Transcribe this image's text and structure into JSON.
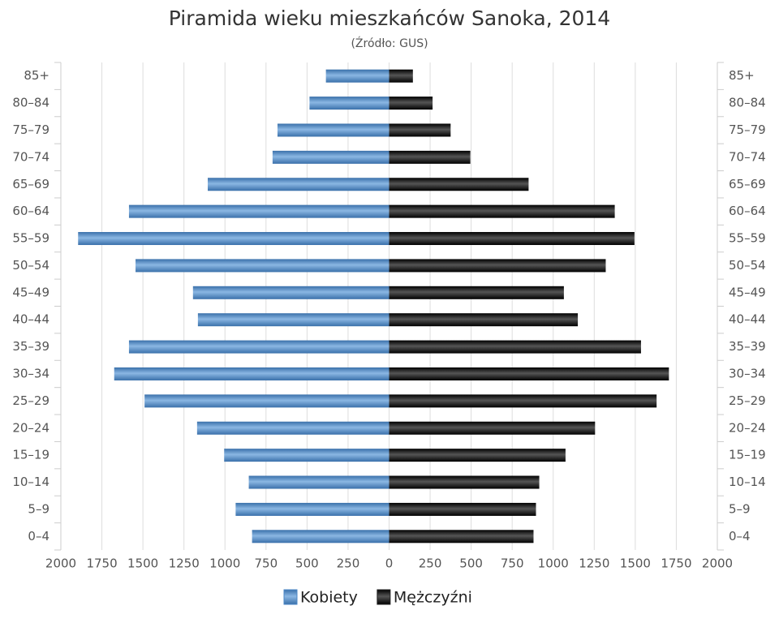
{
  "chart_data": {
    "type": "pyramid",
    "title": "Piramida wieku mieszkańców Sanoka, 2014",
    "subtitle": "(Źródło: GUS)",
    "categories": [
      "0–4",
      "5–9",
      "10–14",
      "15–19",
      "20–24",
      "25–29",
      "30–34",
      "35–39",
      "40–44",
      "45–49",
      "50–54",
      "55–59",
      "60–64",
      "65–69",
      "70–74",
      "75–79",
      "80–84",
      "85+"
    ],
    "series": [
      {
        "name": "Kobiety",
        "color": "#4a86c5",
        "values": [
          -835,
          -935,
          -855,
          -1005,
          -1170,
          -1490,
          -1675,
          -1585,
          -1165,
          -1195,
          -1545,
          -1895,
          -1585,
          -1105,
          -710,
          -680,
          -485,
          -385
        ]
      },
      {
        "name": "Mężczyźni",
        "color": "#222222",
        "values": [
          880,
          895,
          915,
          1075,
          1255,
          1630,
          1705,
          1535,
          1150,
          1065,
          1320,
          1495,
          1375,
          850,
          495,
          375,
          265,
          145
        ]
      }
    ],
    "xlim": [
      -2000,
      2000
    ],
    "xticks": [
      {
        "value": -2000,
        "label": "2000"
      },
      {
        "value": -1750,
        "label": "1750"
      },
      {
        "value": -1500,
        "label": "1500"
      },
      {
        "value": -1250,
        "label": "1250"
      },
      {
        "value": -1000,
        "label": "1000"
      },
      {
        "value": -750,
        "label": "750"
      },
      {
        "value": -500,
        "label": "500"
      },
      {
        "value": -250,
        "label": "250"
      },
      0,
      250,
      500,
      750,
      1000,
      1250,
      1500,
      1750,
      2000
    ],
    "grid": true
  }
}
